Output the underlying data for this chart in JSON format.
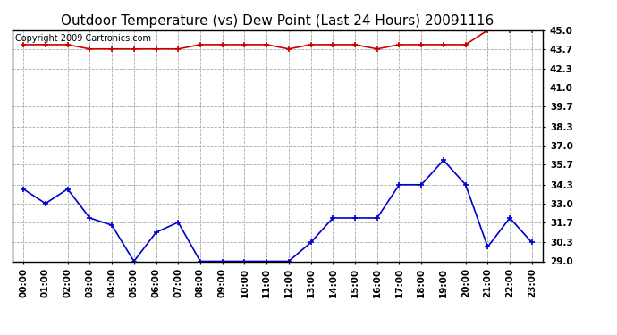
{
  "title": "Outdoor Temperature (vs) Dew Point (Last 24 Hours) 20091116",
  "copyright": "Copyright 2009 Cartronics.com",
  "x_labels": [
    "00:00",
    "01:00",
    "02:00",
    "03:00",
    "04:00",
    "05:00",
    "06:00",
    "07:00",
    "08:00",
    "09:00",
    "10:00",
    "11:00",
    "12:00",
    "13:00",
    "14:00",
    "15:00",
    "16:00",
    "17:00",
    "18:00",
    "19:00",
    "20:00",
    "21:00",
    "22:00",
    "23:00"
  ],
  "temp_values": [
    44.0,
    44.0,
    44.0,
    43.7,
    43.7,
    43.7,
    43.7,
    43.7,
    44.0,
    44.0,
    44.0,
    44.0,
    43.7,
    44.0,
    44.0,
    44.0,
    43.7,
    44.0,
    44.0,
    44.0,
    44.0,
    45.0,
    45.0,
    45.0
  ],
  "dew_values": [
    34.0,
    33.0,
    34.0,
    32.0,
    31.5,
    29.0,
    31.0,
    31.7,
    29.0,
    29.0,
    29.0,
    29.0,
    29.0,
    30.3,
    32.0,
    32.0,
    32.0,
    34.3,
    34.3,
    36.0,
    34.3,
    30.0,
    32.0,
    30.3
  ],
  "temp_color": "#cc0000",
  "dew_color": "#0000cc",
  "ylim_min": 29.0,
  "ylim_max": 45.0,
  "ytick_values": [
    29.0,
    30.3,
    31.7,
    33.0,
    34.3,
    35.7,
    37.0,
    38.3,
    39.7,
    41.0,
    42.3,
    43.7,
    45.0
  ],
  "ytick_labels": [
    "29.0",
    "30.3",
    "31.7",
    "33.0",
    "34.3",
    "35.7",
    "37.0",
    "38.3",
    "39.7",
    "41.0",
    "42.3",
    "43.7",
    "45.0"
  ],
  "background_color": "#ffffff",
  "grid_color": "#aaaaaa",
  "title_fontsize": 11,
  "copyright_fontsize": 7,
  "axis_tick_fontsize": 7.5
}
